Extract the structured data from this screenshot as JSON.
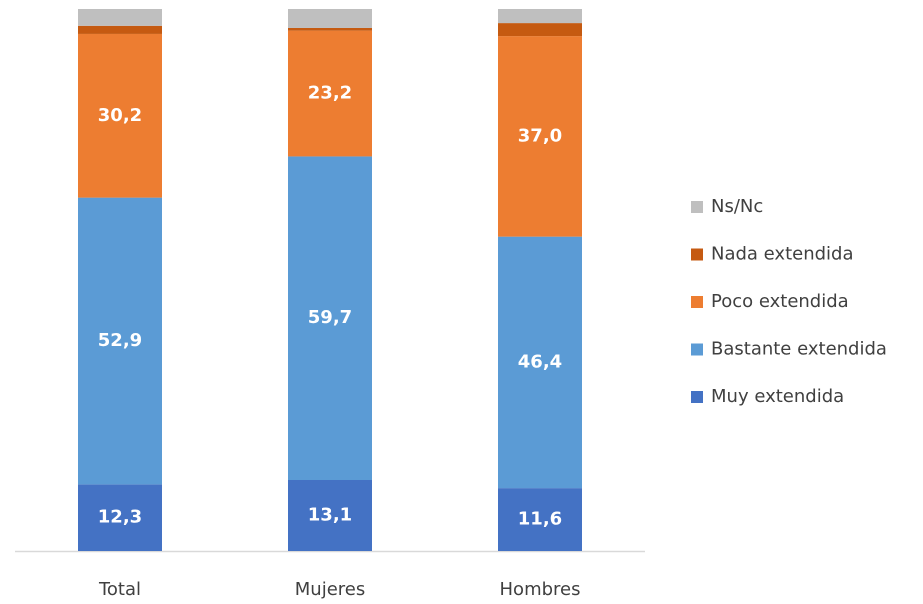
{
  "chart_data": {
    "type": "stacked_bar",
    "categories": [
      "Total",
      "Mujeres",
      "Hombres"
    ],
    "series": [
      {
        "name": "Muy extendida",
        "color": "#4472c4",
        "values": [
          12.3,
          13.1,
          11.6
        ],
        "value_labels": [
          "12,3",
          "13,1",
          "11,6"
        ]
      },
      {
        "name": "Bastante extendida",
        "color": "#5b9bd5",
        "values": [
          52.9,
          59.7,
          46.4
        ],
        "value_labels": [
          "52,9",
          "59,7",
          "46,4"
        ]
      },
      {
        "name": "Poco extendida",
        "color": "#ed7d31",
        "values": [
          30.2,
          23.2,
          37.0
        ],
        "value_labels": [
          "30,2",
          "23,2",
          "37,0"
        ]
      },
      {
        "name": "Nada extendida",
        "color": "#c55a11",
        "values": [
          1.5,
          0.5,
          2.4
        ]
      },
      {
        "name": "Ns/Nc",
        "color": "#bfbfbf",
        "values": [
          3.1,
          3.5,
          2.6
        ]
      }
    ],
    "ylim": [
      0,
      100
    ],
    "legend": "right"
  }
}
